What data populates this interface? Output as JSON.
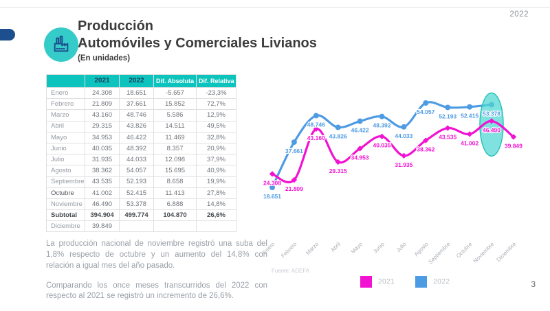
{
  "header": {
    "year": "2022",
    "title_line1": "Producción",
    "title_line2": "Automóviles y Comerciales Livianos",
    "subtitle": "(En unidades)"
  },
  "table": {
    "headers": [
      "",
      "2021",
      "2022",
      "Dif. Absoluta",
      "Dif. Relativa"
    ],
    "rows": [
      {
        "cells": [
          "Enero",
          "24.308",
          "18.651",
          "-5.657",
          "-23,3%"
        ]
      },
      {
        "cells": [
          "Febrero",
          "21.809",
          "37.661",
          "15.852",
          "72,7%"
        ]
      },
      {
        "cells": [
          "Marzo",
          "43.160",
          "48.746",
          "5.586",
          "12,9%"
        ]
      },
      {
        "cells": [
          "Abril",
          "29.315",
          "43.826",
          "14.511",
          "49,5%"
        ]
      },
      {
        "cells": [
          "Mayo",
          "34.953",
          "46.422",
          "11.469",
          "32,8%"
        ]
      },
      {
        "cells": [
          "Junio",
          "40.035",
          "48.392",
          "8.357",
          "20,9%"
        ]
      },
      {
        "cells": [
          "Julio",
          "31.935",
          "44.033",
          "12.098",
          "37,9%"
        ]
      },
      {
        "cells": [
          "Agosto",
          "38.362",
          "54.057",
          "15.695",
          "40,9%"
        ]
      },
      {
        "cells": [
          "Septiembre",
          "43.535",
          "52.193",
          "8.658",
          "19,9%"
        ]
      },
      {
        "cells": [
          "Octubre",
          "41.002",
          "52.415",
          "11.413",
          "27,8%"
        ],
        "emphasis": "month"
      },
      {
        "cells": [
          "Noviembre",
          "46.490",
          "53.378",
          "6.888",
          "14,8%"
        ]
      },
      {
        "cells": [
          "Subtotal",
          "394.904",
          "499.774",
          "104.870",
          "26,6%"
        ],
        "emphasis": "bold"
      },
      {
        "cells": [
          "Diciembre",
          "39.849",
          "",
          "",
          ""
        ]
      }
    ]
  },
  "paragraphs": [
    "La producción nacional de noviembre registró una suba del 1,8% respecto de octubre y un aumento del 14,8% con relación a igual mes del año pasado.",
    "Comparando los once meses transcurridos del 2022 con respecto al 2021 se registró un incremento de 26,6%."
  ],
  "chart": {
    "source": "Fuente: ADEFA"
  },
  "legend": [
    {
      "label": "2021",
      "color": "#F112D2"
    },
    {
      "label": "2022",
      "color": "#4D9BE3"
    }
  ],
  "chart_data": {
    "type": "line",
    "categories": [
      "Enero",
      "Febrero",
      "Marzo",
      "Abril",
      "Mayo",
      "Junio",
      "Julio",
      "Agosto",
      "Septiembre",
      "Octubre",
      "Noviembre",
      "Diciembre"
    ],
    "series": [
      {
        "name": "2021",
        "color": "#F112D2",
        "marker": "diamond",
        "values": [
          24308,
          21809,
          43160,
          29315,
          34953,
          40035,
          31935,
          38362,
          43535,
          41002,
          46490,
          39849
        ]
      },
      {
        "name": "2022",
        "color": "#4D9BE3",
        "marker": "circle",
        "values": [
          18651,
          37661,
          48746,
          43826,
          46422,
          48392,
          44033,
          54057,
          52193,
          52415,
          53378,
          null
        ]
      }
    ],
    "highlight": {
      "category": "Noviembre",
      "shape": "ellipse",
      "fill": "#4FD7D1",
      "border_color": "#23BEB8"
    },
    "value_labels": true,
    "grid": false,
    "legend_position": "bottom"
  },
  "footer": {
    "page_number": "3"
  },
  "colors": {
    "teal": "#0CC4BD",
    "navy": "#1D4F8E",
    "magenta": "#F112D2",
    "blue": "#4D9BE3",
    "icon_circle": "#35CBC9"
  }
}
